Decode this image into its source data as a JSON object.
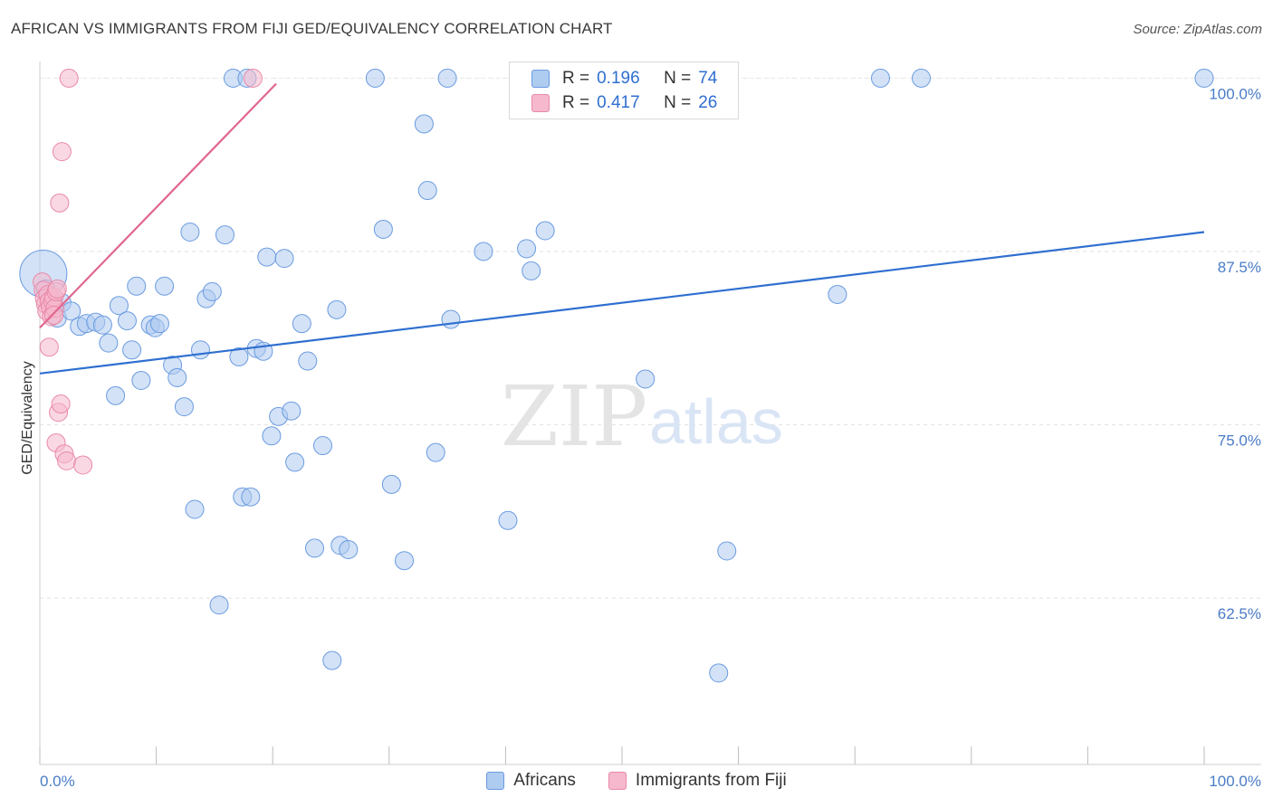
{
  "title": "AFRICAN VS IMMIGRANTS FROM FIJI GED/EQUIVALENCY CORRELATION CHART",
  "source": "Source: ZipAtlas.com",
  "watermark": {
    "zip": "ZIP",
    "atlas": "atlas"
  },
  "legend": {
    "r_label": "R =",
    "n_label": "N =",
    "rows": [
      {
        "r": "0.196",
        "n": "74"
      },
      {
        "r": "0.417",
        "n": "26"
      }
    ]
  },
  "colors": {
    "blue_fill": "#aecbf0",
    "blue_stroke": "#6a9be0",
    "blue_line": "#2f6fd0",
    "pink_fill": "#f6b8cc",
    "pink_stroke": "#e889a8",
    "pink_line": "#e06690",
    "tick_text": "#4a7cc7",
    "grid": "#e2e2e2"
  },
  "chart_data": {
    "type": "scatter",
    "title": "AFRICAN VS IMMIGRANTS FROM FIJI GED/EQUIVALENCY CORRELATION CHART",
    "xlabel": "",
    "ylabel": "GED/Equivalency",
    "xlim": [
      0,
      100
    ],
    "ylim": [
      50.5,
      101.2
    ],
    "x_tick_labels": [
      "0.0%",
      "100.0%"
    ],
    "y_ticks": [
      62.5,
      75.0,
      87.5,
      100.0
    ],
    "y_tick_labels": [
      "62.5%",
      "75.0%",
      "87.5%",
      "100.0%"
    ],
    "legend_position": "bottom",
    "series": [
      {
        "name": "Africans",
        "color": "#6a9be0",
        "trend": {
          "x": [
            0,
            100
          ],
          "y": [
            78.7,
            88.9
          ]
        },
        "points": [
          [
            0.3,
            85.9,
            26
          ],
          [
            0.5,
            84.8,
            10
          ],
          [
            0.8,
            84.3,
            10
          ],
          [
            1.2,
            83.6,
            10
          ],
          [
            1.5,
            82.7,
            10
          ],
          [
            1.9,
            83.8,
            10
          ],
          [
            2.7,
            83.2,
            10
          ],
          [
            3.4,
            82.1,
            10
          ],
          [
            4.0,
            82.3,
            10
          ],
          [
            4.8,
            82.4,
            10
          ],
          [
            5.4,
            82.2,
            10
          ],
          [
            5.9,
            80.9,
            10
          ],
          [
            6.5,
            77.1,
            10
          ],
          [
            6.8,
            83.6,
            10
          ],
          [
            7.5,
            82.5,
            10
          ],
          [
            7.9,
            80.4,
            10
          ],
          [
            8.3,
            85.0,
            10
          ],
          [
            8.7,
            78.2,
            10
          ],
          [
            9.5,
            82.2,
            10
          ],
          [
            9.9,
            82.0,
            10
          ],
          [
            10.3,
            82.3,
            10
          ],
          [
            10.7,
            85.0,
            10
          ],
          [
            11.4,
            79.3,
            10
          ],
          [
            11.8,
            78.4,
            10
          ],
          [
            12.4,
            76.3,
            10
          ],
          [
            12.9,
            88.9,
            10
          ],
          [
            13.3,
            68.9,
            10
          ],
          [
            13.8,
            80.4,
            10
          ],
          [
            14.3,
            84.1,
            10
          ],
          [
            14.8,
            84.6,
            10
          ],
          [
            15.4,
            62.0,
            10
          ],
          [
            15.9,
            88.7,
            10
          ],
          [
            16.6,
            100.0,
            10
          ],
          [
            17.1,
            79.9,
            10
          ],
          [
            17.4,
            69.8,
            10
          ],
          [
            17.8,
            100.0,
            10
          ],
          [
            18.1,
            69.8,
            10
          ],
          [
            18.6,
            80.5,
            10
          ],
          [
            19.2,
            80.3,
            10
          ],
          [
            19.5,
            87.1,
            10
          ],
          [
            19.9,
            74.2,
            10
          ],
          [
            20.5,
            75.6,
            10
          ],
          [
            21.0,
            87.0,
            10
          ],
          [
            21.6,
            76.0,
            10
          ],
          [
            21.9,
            72.3,
            10
          ],
          [
            22.5,
            82.3,
            10
          ],
          [
            23.0,
            79.6,
            10
          ],
          [
            23.6,
            66.1,
            10
          ],
          [
            24.3,
            73.5,
            10
          ],
          [
            25.1,
            58.0,
            10
          ],
          [
            25.5,
            83.3,
            10
          ],
          [
            25.8,
            66.3,
            10
          ],
          [
            26.5,
            66.0,
            10
          ],
          [
            28.8,
            100.0,
            10
          ],
          [
            29.5,
            89.1,
            10
          ],
          [
            30.2,
            70.7,
            10
          ],
          [
            31.3,
            65.2,
            10
          ],
          [
            33.0,
            96.7,
            10
          ],
          [
            33.3,
            91.9,
            10
          ],
          [
            34.0,
            73.0,
            10
          ],
          [
            35.0,
            100.0,
            10
          ],
          [
            35.3,
            82.6,
            10
          ],
          [
            38.1,
            87.5,
            10
          ],
          [
            40.2,
            68.1,
            10
          ],
          [
            41.8,
            87.7,
            10
          ],
          [
            42.2,
            86.1,
            10
          ],
          [
            43.4,
            89.0,
            10
          ],
          [
            52.0,
            78.3,
            10
          ],
          [
            58.3,
            57.1,
            10
          ],
          [
            59.0,
            65.9,
            10
          ],
          [
            68.5,
            84.4,
            10
          ],
          [
            72.2,
            100.0,
            10
          ],
          [
            75.7,
            100.0,
            10
          ],
          [
            100.0,
            100.0,
            10
          ]
        ]
      },
      {
        "name": "Immigrants from Fiji",
        "color": "#e889a8",
        "trend": {
          "x": [
            0,
            20.3
          ],
          "y": [
            82.0,
            99.6
          ]
        },
        "points": [
          [
            0.2,
            85.3,
            10
          ],
          [
            0.3,
            84.7,
            10
          ],
          [
            0.4,
            84.1,
            10
          ],
          [
            0.5,
            83.7,
            10
          ],
          [
            0.6,
            83.2,
            10
          ],
          [
            0.7,
            84.4,
            10
          ],
          [
            0.8,
            83.9,
            10
          ],
          [
            0.9,
            83.5,
            10
          ],
          [
            1.0,
            82.8,
            10
          ],
          [
            1.1,
            83.9,
            10
          ],
          [
            1.2,
            84.2,
            10
          ],
          [
            1.3,
            83.4,
            10
          ],
          [
            1.4,
            84.6,
            10
          ],
          [
            1.5,
            84.8,
            10
          ],
          [
            0.8,
            80.6,
            10
          ],
          [
            1.6,
            75.9,
            10
          ],
          [
            1.8,
            76.5,
            10
          ],
          [
            1.7,
            91.0,
            10
          ],
          [
            1.9,
            94.7,
            10
          ],
          [
            1.4,
            73.7,
            10
          ],
          [
            2.1,
            72.9,
            10
          ],
          [
            2.3,
            72.4,
            10
          ],
          [
            3.7,
            72.1,
            10
          ],
          [
            2.5,
            100.0,
            10
          ],
          [
            18.3,
            100.0,
            10
          ],
          [
            1.2,
            82.9,
            10
          ]
        ]
      }
    ]
  },
  "bottom_legend": [
    {
      "label": "Africans"
    },
    {
      "label": "Immigrants from Fiji"
    }
  ]
}
